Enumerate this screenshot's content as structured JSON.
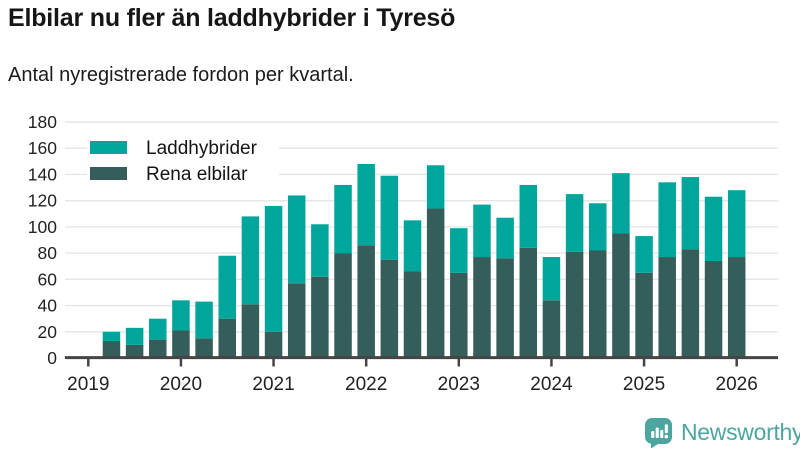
{
  "header": {
    "title": "Elbilar nu fler än laddhybrider i Tyresö",
    "subtitle": "Antal nyregistrerade fordon per kvartal."
  },
  "chart_data": {
    "type": "bar",
    "stacked": true,
    "title": "Elbilar nu fler än laddhybrider i Tyresö",
    "subtitle": "Antal nyregistrerade fordon per kvartal.",
    "categories": [
      "2019 Q2",
      "2019 Q3",
      "2019 Q4",
      "2020 Q1",
      "2020 Q2",
      "2020 Q3",
      "2020 Q4",
      "2021 Q1",
      "2021 Q2",
      "2021 Q3",
      "2021 Q4",
      "2022 Q1",
      "2022 Q2",
      "2022 Q3",
      "2022 Q4",
      "2023 Q1",
      "2023 Q2",
      "2023 Q3",
      "2023 Q4",
      "2024 Q1",
      "2024 Q2",
      "2024 Q3",
      "2024 Q4",
      "2025 Q1",
      "2025 Q2",
      "2025 Q3",
      "2025 Q4",
      "2026 Q1"
    ],
    "series": [
      {
        "name": "Rena elbilar",
        "color": "#355e5a",
        "values": [
          13,
          10,
          14,
          21,
          15,
          30,
          41,
          20,
          57,
          62,
          80,
          86,
          75,
          66,
          114,
          65,
          77,
          76,
          84,
          44,
          81,
          82,
          95,
          65,
          77,
          83,
          74,
          77
        ]
      },
      {
        "name": "Laddhybrider",
        "color": "#00a69c",
        "values": [
          7,
          13,
          16,
          23,
          28,
          48,
          67,
          96,
          67,
          40,
          52,
          62,
          64,
          39,
          33,
          34,
          40,
          31,
          48,
          33,
          44,
          36,
          46,
          28,
          57,
          55,
          49,
          51
        ]
      }
    ],
    "legend": [
      {
        "label": "Laddhybrider",
        "color": "#00a69c"
      },
      {
        "label": "Rena elbilar",
        "color": "#355e5a"
      }
    ],
    "legend_position": "top-left-inside",
    "grid": true,
    "ylim": [
      0,
      180
    ],
    "yticks": [
      0,
      20,
      40,
      60,
      80,
      100,
      120,
      140,
      160,
      180
    ],
    "xticks": [
      "2019",
      "2020",
      "2021",
      "2022",
      "2023",
      "2024",
      "2025",
      "2026"
    ],
    "xlabel": "",
    "ylabel": ""
  },
  "colors": {
    "grid": "#e5e5e5",
    "axis": "#454545",
    "tick_label": "#222222",
    "legend_text": "#141414"
  },
  "branding": {
    "name": "Newsworthy",
    "color": "#4da5a0"
  }
}
